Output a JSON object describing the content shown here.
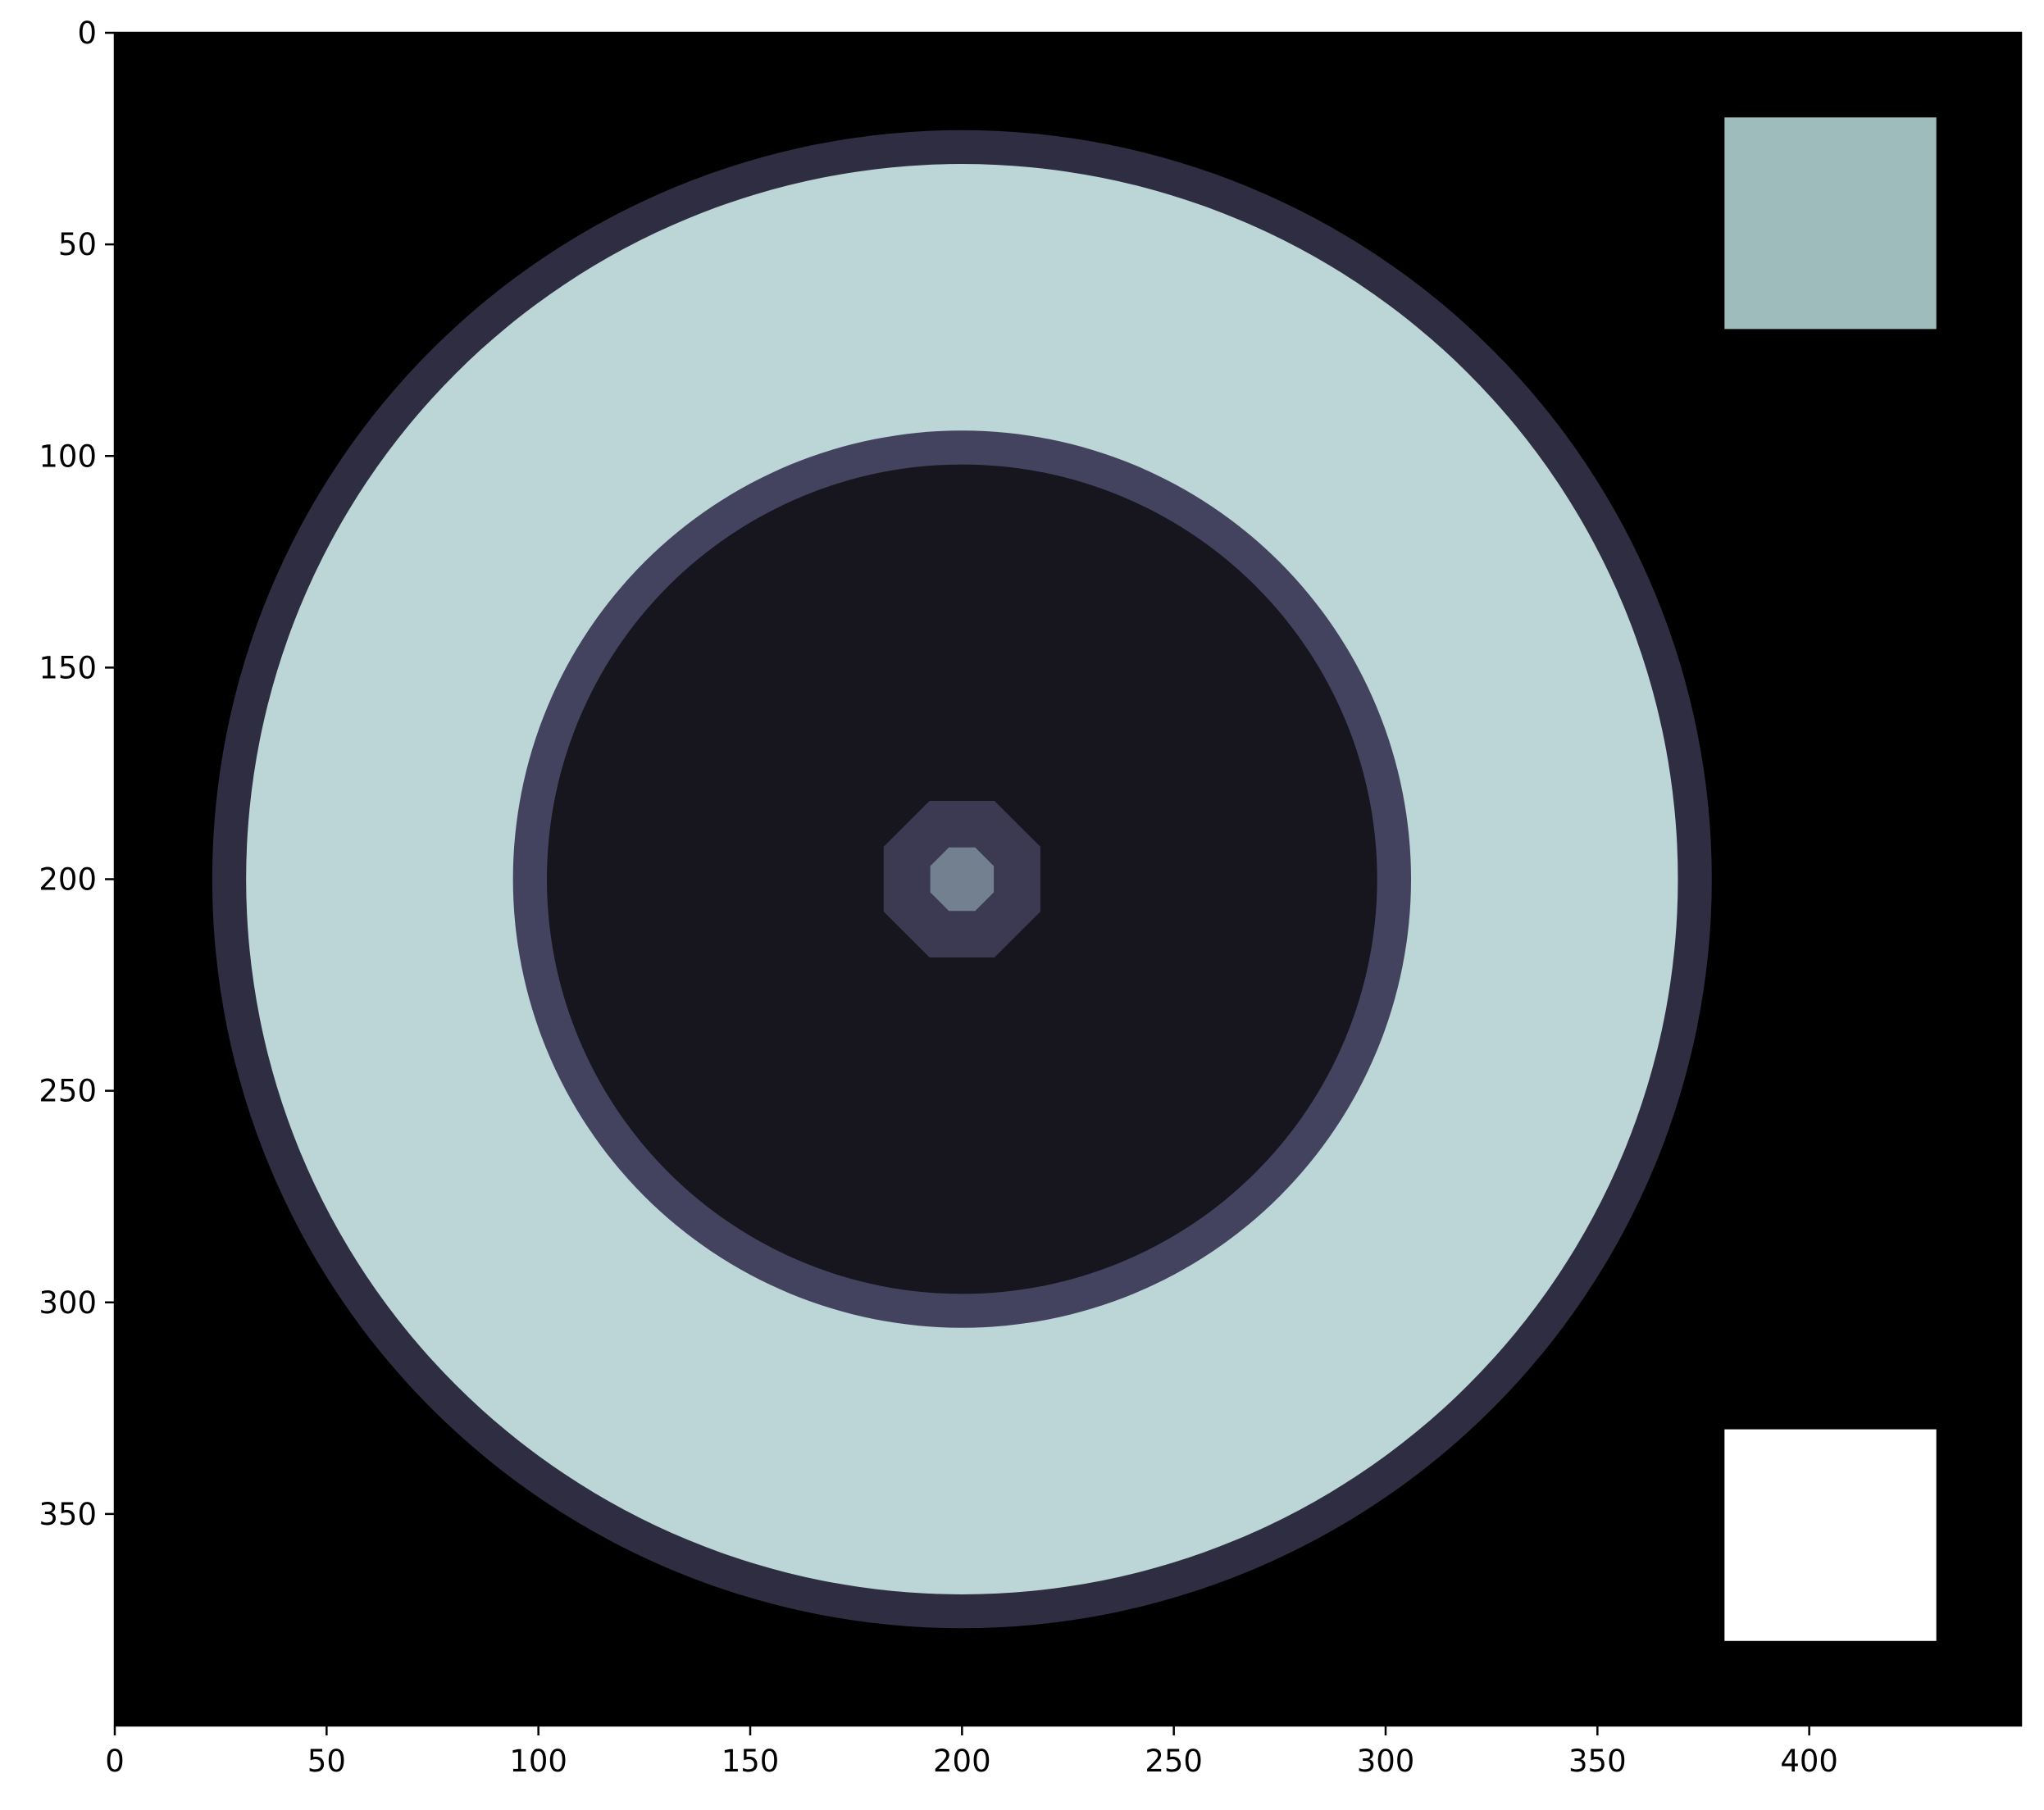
{
  "chart_data": {
    "type": "heatmap",
    "title": "",
    "xlabel": "",
    "ylabel": "",
    "xlim": [
      0,
      450
    ],
    "ylim": [
      400,
      0
    ],
    "y_axis_inverted": true,
    "grid": false,
    "legend": "none",
    "xticks": [
      0,
      50,
      100,
      150,
      200,
      250,
      300,
      350,
      400
    ],
    "yticks": [
      0,
      50,
      100,
      150,
      200,
      250,
      300,
      350
    ],
    "xtick_labels": [
      "0",
      "50",
      "100",
      "150",
      "200",
      "250",
      "300",
      "350",
      "400"
    ],
    "ytick_labels": [
      "0",
      "50",
      "100",
      "150",
      "200",
      "250",
      "300",
      "350"
    ],
    "background_color": "#000000",
    "rings": [
      {
        "name": "outer-ring",
        "center": [
          200,
          200
        ],
        "radius": 177,
        "color": "#2e2d42"
      },
      {
        "name": "outer-band",
        "center": [
          200,
          200
        ],
        "radius": 169,
        "color": "#bcd5d6"
      },
      {
        "name": "inner-ring",
        "center": [
          200,
          200
        ],
        "radius": 106,
        "color": "#434360"
      },
      {
        "name": "inner-disk",
        "center": [
          200,
          200
        ],
        "radius": 98,
        "color": "#17161f"
      },
      {
        "name": "core-ring",
        "center": [
          200,
          200
        ],
        "radius": 18.5,
        "color": "#3b3a52",
        "octagonal": true
      },
      {
        "name": "core-dot",
        "center": [
          200,
          200
        ],
        "radius": 7.5,
        "color": "#72808f",
        "octagonal": true
      }
    ],
    "squares": [
      {
        "name": "top-right-square",
        "x": [
          380,
          430
        ],
        "y": [
          20,
          70
        ],
        "color": "#9fbcbd"
      },
      {
        "name": "bottom-right-square",
        "x": [
          380,
          430
        ],
        "y": [
          330,
          380
        ],
        "color": "#ffffff"
      }
    ]
  }
}
